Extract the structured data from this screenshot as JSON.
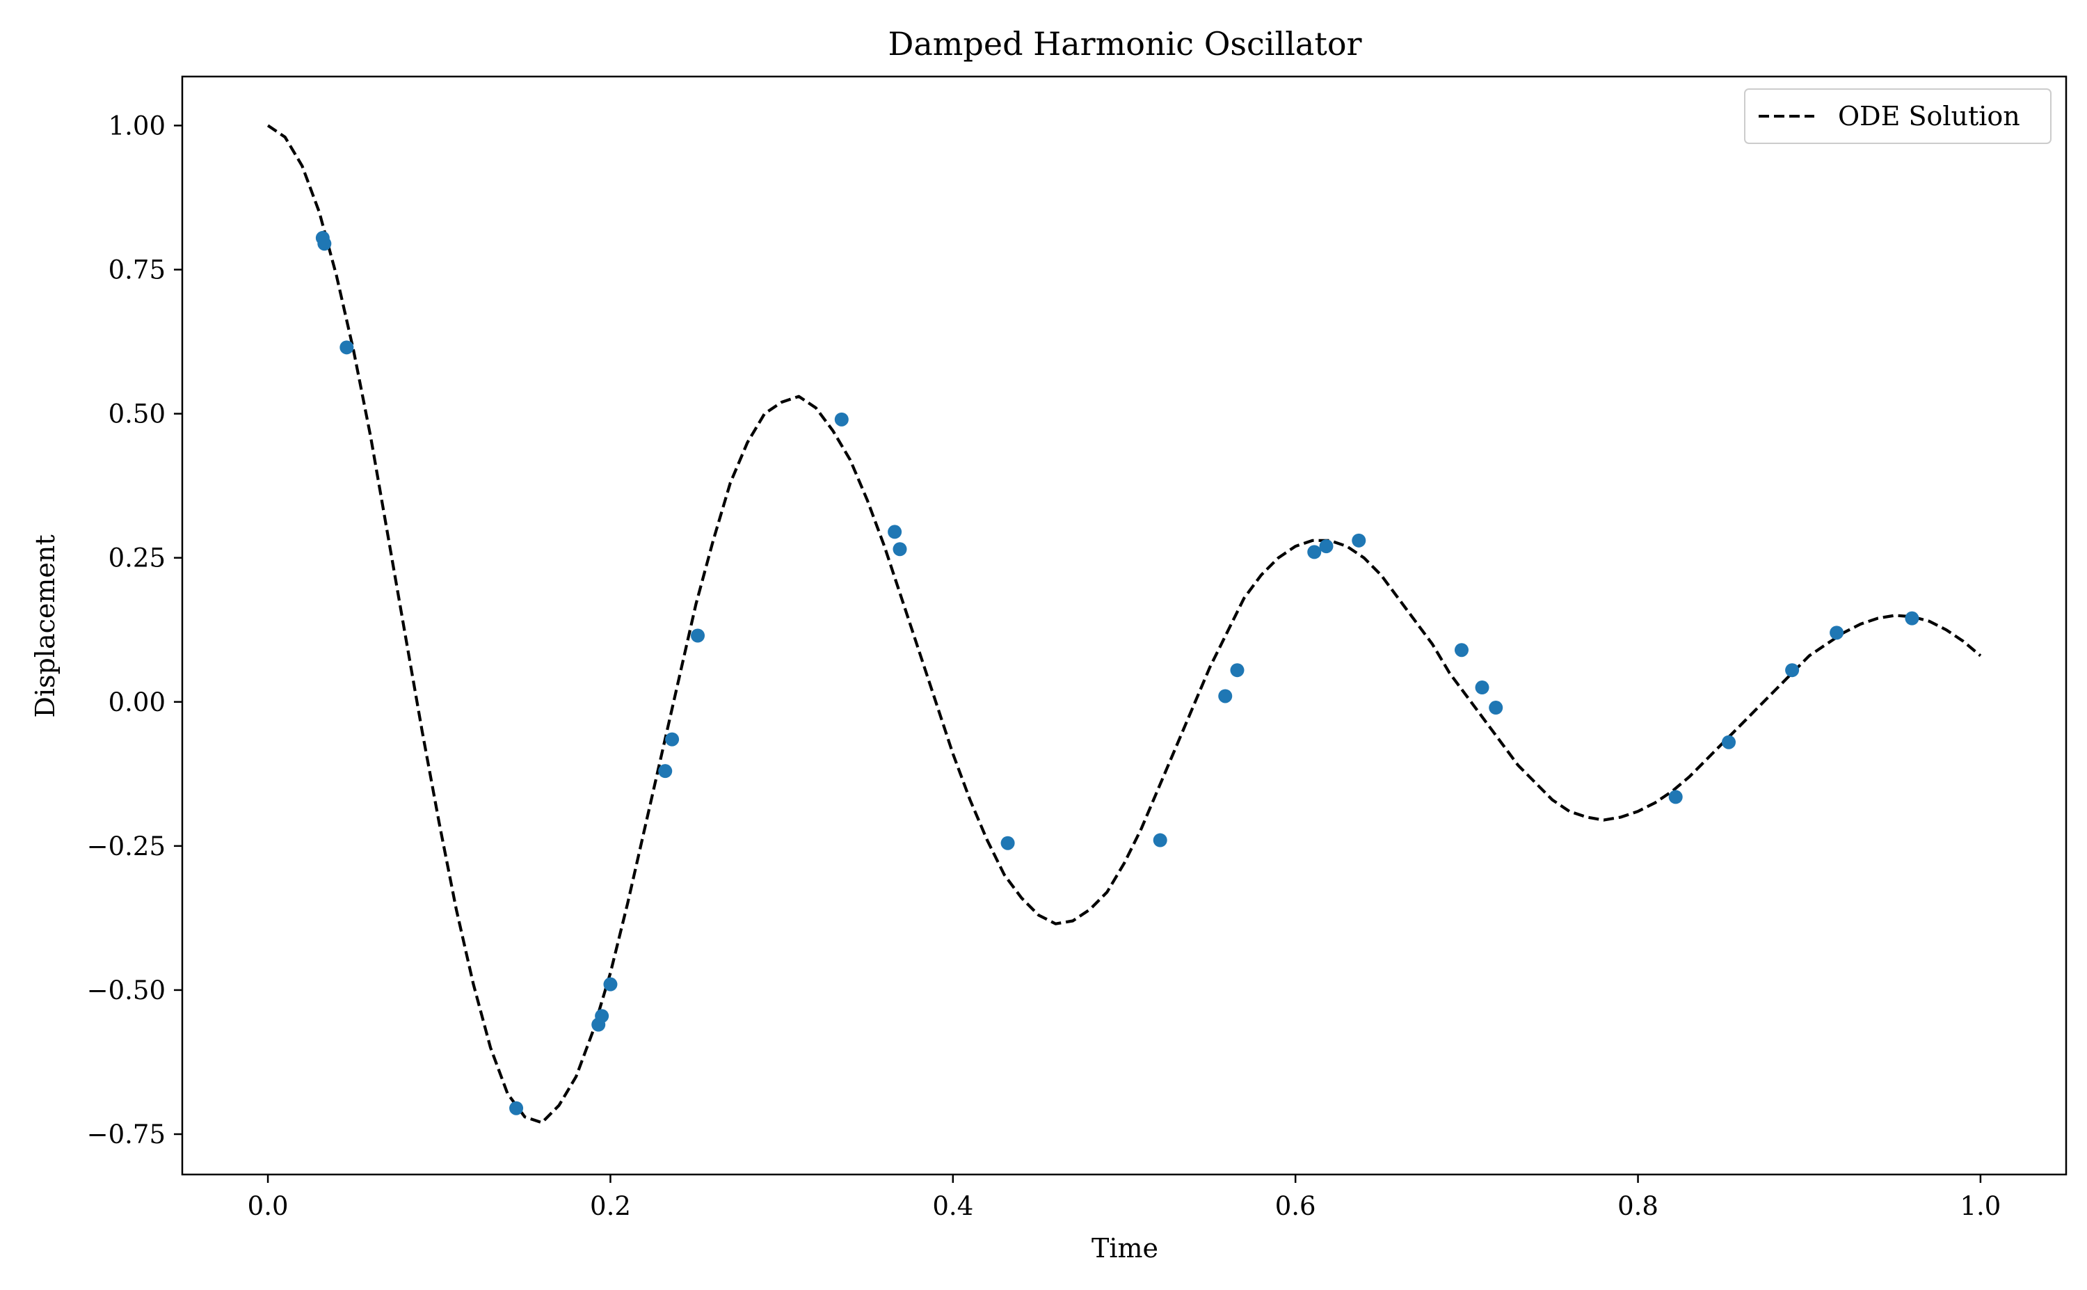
{
  "chart_data": {
    "type": "line",
    "title": "Damped Harmonic Oscillator",
    "xlabel": "Time",
    "ylabel": "Displacement",
    "xlim": [
      -0.05,
      1.05
    ],
    "ylim": [
      -0.82,
      1.085
    ],
    "xticks": [
      0.0,
      0.2,
      0.4,
      0.6,
      0.8,
      1.0
    ],
    "xtick_labels": [
      "0.0",
      "0.2",
      "0.4",
      "0.6",
      "0.8",
      "1.0"
    ],
    "yticks": [
      1.0,
      0.75,
      0.5,
      0.25,
      0.0,
      -0.25,
      -0.5,
      -0.75
    ],
    "ytick_labels": [
      "1.00",
      "0.75",
      "0.50",
      "0.25",
      "0.00",
      "−0.25",
      "−0.50",
      "−0.75"
    ],
    "grid": false,
    "legend": {
      "position": "upper right",
      "entries": [
        "ODE Solution"
      ]
    },
    "series": [
      {
        "name": "ODE Solution",
        "style": "dashed",
        "color": "#000000",
        "x": [
          0.0,
          0.01,
          0.02,
          0.03,
          0.04,
          0.05,
          0.06,
          0.07,
          0.08,
          0.09,
          0.1,
          0.11,
          0.12,
          0.13,
          0.14,
          0.15,
          0.16,
          0.17,
          0.18,
          0.19,
          0.2,
          0.21,
          0.22,
          0.23,
          0.24,
          0.25,
          0.26,
          0.27,
          0.28,
          0.29,
          0.3,
          0.31,
          0.32,
          0.33,
          0.34,
          0.35,
          0.36,
          0.37,
          0.38,
          0.39,
          0.4,
          0.41,
          0.42,
          0.43,
          0.44,
          0.45,
          0.46,
          0.47,
          0.48,
          0.49,
          0.5,
          0.51,
          0.52,
          0.53,
          0.54,
          0.55,
          0.56,
          0.57,
          0.58,
          0.59,
          0.6,
          0.61,
          0.62,
          0.63,
          0.64,
          0.65,
          0.66,
          0.67,
          0.68,
          0.69,
          0.7,
          0.71,
          0.72,
          0.73,
          0.74,
          0.75,
          0.76,
          0.77,
          0.78,
          0.79,
          0.8,
          0.81,
          0.82,
          0.83,
          0.84,
          0.85,
          0.86,
          0.87,
          0.88,
          0.89,
          0.9,
          0.91,
          0.92,
          0.93,
          0.94,
          0.95,
          0.96,
          0.97,
          0.98,
          0.99,
          1.0
        ],
        "y": [
          1.0,
          0.98,
          0.93,
          0.85,
          0.74,
          0.61,
          0.46,
          0.29,
          0.12,
          -0.05,
          -0.21,
          -0.36,
          -0.49,
          -0.6,
          -0.68,
          -0.72,
          -0.73,
          -0.7,
          -0.65,
          -0.57,
          -0.47,
          -0.35,
          -0.22,
          -0.09,
          0.04,
          0.17,
          0.28,
          0.38,
          0.45,
          0.5,
          0.52,
          0.53,
          0.51,
          0.47,
          0.42,
          0.35,
          0.27,
          0.18,
          0.09,
          0.0,
          -0.09,
          -0.17,
          -0.24,
          -0.3,
          -0.34,
          -0.37,
          -0.385,
          -0.38,
          -0.36,
          -0.33,
          -0.28,
          -0.22,
          -0.15,
          -0.08,
          -0.01,
          0.06,
          0.12,
          0.18,
          0.22,
          0.25,
          0.27,
          0.28,
          0.28,
          0.27,
          0.25,
          0.22,
          0.18,
          0.14,
          0.1,
          0.05,
          0.01,
          -0.03,
          -0.07,
          -0.11,
          -0.14,
          -0.17,
          -0.19,
          -0.2,
          -0.205,
          -0.2,
          -0.19,
          -0.175,
          -0.155,
          -0.13,
          -0.1,
          -0.07,
          -0.04,
          -0.01,
          0.02,
          0.05,
          0.08,
          0.1,
          0.12,
          0.135,
          0.145,
          0.15,
          0.148,
          0.14,
          0.125,
          0.105,
          0.08
        ]
      },
      {
        "name": "",
        "style": "markers",
        "color": "#1f77b4",
        "x": [
          0.032,
          0.033,
          0.046,
          0.145,
          0.193,
          0.195,
          0.2,
          0.232,
          0.236,
          0.251,
          0.335,
          0.366,
          0.369,
          0.432,
          0.521,
          0.559,
          0.566,
          0.611,
          0.618,
          0.637,
          0.697,
          0.709,
          0.717,
          0.822,
          0.853,
          0.89,
          0.916,
          0.96
        ],
        "y": [
          0.805,
          0.795,
          0.615,
          -0.705,
          -0.56,
          -0.545,
          -0.49,
          -0.12,
          -0.065,
          0.115,
          0.49,
          0.295,
          0.265,
          -0.245,
          -0.24,
          0.01,
          0.055,
          0.26,
          0.27,
          0.28,
          0.09,
          0.025,
          -0.01,
          -0.165,
          -0.07,
          0.055,
          0.12,
          0.145
        ]
      }
    ]
  }
}
